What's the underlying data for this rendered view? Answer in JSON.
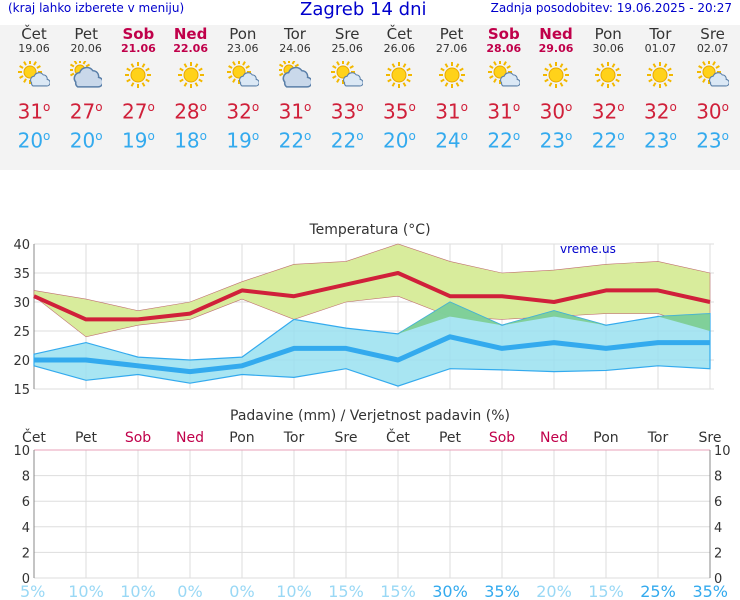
{
  "header": {
    "hint": "(kraj lahko izberete v meniju)",
    "title": "Zagreb 14 dni",
    "updated": "Zadnja posodobitev: 19.06.2025 - 20:27"
  },
  "days": [
    {
      "name": "Čet",
      "date": "19.06",
      "weekend": false,
      "icon": "sun-cloud-icon",
      "max": "31",
      "min": "20"
    },
    {
      "name": "Pet",
      "date": "20.06",
      "weekend": false,
      "icon": "cloudy-icon",
      "max": "27",
      "min": "20"
    },
    {
      "name": "Sob",
      "date": "21.06",
      "weekend": true,
      "icon": "sun-icon",
      "max": "27",
      "min": "19"
    },
    {
      "name": "Ned",
      "date": "22.06",
      "weekend": true,
      "icon": "sun-icon",
      "max": "28",
      "min": "18"
    },
    {
      "name": "Pon",
      "date": "23.06",
      "weekend": false,
      "icon": "sun-cloud-icon",
      "max": "32",
      "min": "19"
    },
    {
      "name": "Tor",
      "date": "24.06",
      "weekend": false,
      "icon": "cloudy-icon",
      "max": "31",
      "min": "22"
    },
    {
      "name": "Sre",
      "date": "25.06",
      "weekend": false,
      "icon": "sun-cloud-icon",
      "max": "33",
      "min": "22"
    },
    {
      "name": "Čet",
      "date": "26.06",
      "weekend": false,
      "icon": "sun-icon",
      "max": "35",
      "min": "20"
    },
    {
      "name": "Pet",
      "date": "27.06",
      "weekend": false,
      "icon": "sun-icon",
      "max": "31",
      "min": "24"
    },
    {
      "name": "Sob",
      "date": "28.06",
      "weekend": true,
      "icon": "sun-cloud-icon",
      "max": "31",
      "min": "22"
    },
    {
      "name": "Ned",
      "date": "29.06",
      "weekend": true,
      "icon": "sun-icon",
      "max": "30",
      "min": "23"
    },
    {
      "name": "Pon",
      "date": "30.06",
      "weekend": false,
      "icon": "sun-icon",
      "max": "32",
      "min": "22"
    },
    {
      "name": "Tor",
      "date": "01.07",
      "weekend": false,
      "icon": "sun-icon",
      "max": "32",
      "min": "23"
    },
    {
      "name": "Sre",
      "date": "02.07",
      "weekend": false,
      "icon": "sun-cloud-icon",
      "max": "30",
      "min": "23"
    }
  ],
  "colors": {
    "max_line": "#d0203a",
    "min_line": "#33aaee",
    "max_band": "#d8ec9c",
    "min_band": "#99e0f0",
    "overlap": "#7acc8c",
    "weekend": "#c0004a",
    "title": "#0000cc"
  },
  "chart_data": [
    {
      "type": "line",
      "title": "Temperatura (°C)",
      "watermark": "vreme.us",
      "x": [
        "Čet",
        "Pet",
        "Sob",
        "Ned",
        "Pon",
        "Tor",
        "Sre",
        "Čet",
        "Pet",
        "Sob",
        "Ned",
        "Pon",
        "Tor",
        "Sre"
      ],
      "ylim": [
        15,
        40
      ],
      "yticks": [
        15,
        20,
        25,
        30,
        35,
        40
      ],
      "grid": true,
      "series": [
        {
          "kind": "max",
          "values": [
            31,
            27,
            27,
            28,
            32,
            31,
            33,
            35,
            31,
            31,
            30,
            32,
            32,
            30
          ],
          "band_low": [
            31,
            24,
            26,
            27,
            30.5,
            27,
            30,
            31,
            27.5,
            27,
            27.5,
            28,
            28,
            25
          ],
          "band_high": [
            32,
            30.5,
            28.5,
            30,
            33.5,
            36.5,
            37,
            40,
            37,
            35,
            35.5,
            36.5,
            37,
            35
          ]
        },
        {
          "kind": "min",
          "values": [
            20,
            20,
            19,
            18,
            19,
            22,
            22,
            20,
            24,
            22,
            23,
            22,
            23,
            23
          ],
          "band_low": [
            19,
            16.5,
            17.5,
            16,
            17.5,
            17,
            18.5,
            15.5,
            18.5,
            18.3,
            18,
            18.2,
            19,
            18.5
          ],
          "band_high": [
            21,
            23,
            20.5,
            20,
            20.5,
            27,
            25.5,
            24.5,
            30,
            26,
            28.5,
            26,
            27.5,
            28
          ]
        }
      ]
    },
    {
      "type": "bar",
      "title": "Padavine (mm) / Verjetnost padavin (%)",
      "categories": [
        "Čet",
        "Pet",
        "Sob",
        "Ned",
        "Pon",
        "Tor",
        "Sre",
        "Čet",
        "Pet",
        "Sob",
        "Ned",
        "Pon",
        "Tor",
        "Sre"
      ],
      "weekend": [
        false,
        false,
        true,
        true,
        false,
        false,
        false,
        false,
        false,
        true,
        true,
        false,
        false,
        false
      ],
      "values": [
        0,
        0,
        0,
        0,
        0,
        0,
        0,
        0,
        0,
        0,
        0,
        0,
        0,
        0
      ],
      "probability": [
        "5%",
        "10%",
        "10%",
        "0%",
        "0%",
        "10%",
        "15%",
        "15%",
        "30%",
        "35%",
        "20%",
        "15%",
        "25%",
        "35%"
      ],
      "ylim": [
        0,
        10
      ],
      "yticks": [
        0,
        2,
        4,
        6,
        8,
        10
      ],
      "grid": true
    }
  ]
}
